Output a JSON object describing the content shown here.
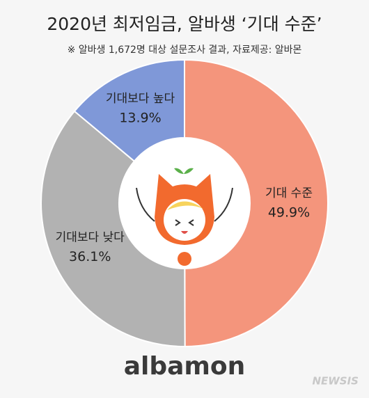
{
  "chart_data": {
    "type": "donut",
    "title": "2020년 최저임금, 알바생 ‘기대 수준’",
    "subtitle": "※ 알바생 1,672명 대상 설문조사 결과,  자료제공: 알바몬",
    "categories": [
      "기대 수준",
      "기대보다 낮다",
      "기대보다 높다"
    ],
    "values": [
      49.9,
      36.1,
      13.9
    ],
    "value_labels": [
      "49.9%",
      "36.1%",
      "13.9%"
    ],
    "colors": [
      "#f4957c",
      "#b2b2b2",
      "#7f98d8"
    ]
  },
  "logo": "albamon",
  "watermark": "NEWSIS"
}
